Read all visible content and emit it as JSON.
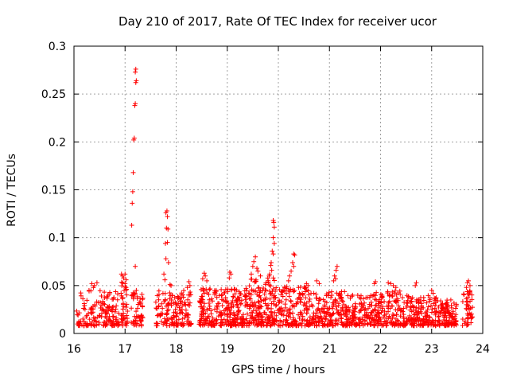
{
  "chart_data": {
    "type": "scatter",
    "title": "Day 210 of 2017, Rate Of TEC Index for receiver ucor",
    "xlabel": "GPS time / hours",
    "ylabel": "ROTI / TECUs",
    "xlim": [
      16,
      24
    ],
    "ylim": [
      0,
      0.3
    ],
    "x_ticks": [
      "16",
      "17",
      "18",
      "19",
      "20",
      "21",
      "22",
      "23",
      "24"
    ],
    "y_ticks": [
      "0",
      "0.05",
      "0.1",
      "0.15",
      "0.2",
      "0.25",
      "0.3"
    ],
    "grid": true,
    "marker": "+",
    "marker_color": "#ff0000",
    "series": [
      {
        "name": "ROTI",
        "points": [
          [
            17.13,
            0.113
          ],
          [
            17.14,
            0.136
          ],
          [
            17.15,
            0.148
          ],
          [
            17.16,
            0.168
          ],
          [
            17.17,
            0.202
          ],
          [
            17.18,
            0.204
          ],
          [
            17.19,
            0.238
          ],
          [
            17.2,
            0.24
          ],
          [
            17.21,
            0.262
          ],
          [
            17.22,
            0.264
          ],
          [
            17.2,
            0.273
          ],
          [
            17.21,
            0.276
          ],
          [
            17.2,
            0.07
          ],
          [
            17.22,
            0.045
          ],
          [
            17.16,
            0.038
          ],
          [
            17.8,
            0.126
          ],
          [
            17.82,
            0.128
          ],
          [
            17.83,
            0.122
          ],
          [
            17.81,
            0.11
          ],
          [
            17.84,
            0.109
          ],
          [
            17.79,
            0.094
          ],
          [
            17.83,
            0.095
          ],
          [
            17.8,
            0.078
          ],
          [
            17.85,
            0.074
          ],
          [
            17.88,
            0.051
          ],
          [
            17.9,
            0.05
          ],
          [
            17.76,
            0.062
          ],
          [
            17.78,
            0.056
          ],
          [
            19.9,
            0.118
          ],
          [
            19.91,
            0.116
          ],
          [
            19.92,
            0.111
          ],
          [
            19.9,
            0.1
          ],
          [
            19.92,
            0.094
          ],
          [
            19.88,
            0.086
          ],
          [
            19.9,
            0.083
          ],
          [
            19.86,
            0.074
          ],
          [
            19.85,
            0.071
          ],
          [
            19.87,
            0.066
          ],
          [
            19.82,
            0.06
          ],
          [
            19.83,
            0.062
          ],
          [
            20.3,
            0.083
          ],
          [
            20.32,
            0.082
          ],
          [
            20.28,
            0.074
          ],
          [
            20.3,
            0.07
          ],
          [
            20.25,
            0.065
          ],
          [
            20.22,
            0.06
          ],
          [
            20.2,
            0.055
          ],
          [
            21.15,
            0.07
          ],
          [
            21.13,
            0.066
          ],
          [
            21.1,
            0.06
          ],
          [
            21.12,
            0.057
          ],
          [
            21.08,
            0.055
          ],
          [
            19.55,
            0.08
          ],
          [
            19.52,
            0.075
          ],
          [
            19.5,
            0.07
          ],
          [
            19.58,
            0.068
          ],
          [
            19.47,
            0.062
          ],
          [
            19.65,
            0.06
          ],
          [
            19.6,
            0.065
          ],
          [
            16.93,
            0.062
          ],
          [
            16.95,
            0.06
          ],
          [
            17.0,
            0.062
          ],
          [
            16.97,
            0.058
          ],
          [
            17.02,
            0.056
          ],
          [
            17.0,
            0.052
          ],
          [
            18.55,
            0.063
          ],
          [
            18.57,
            0.06
          ],
          [
            18.52,
            0.057
          ],
          [
            18.6,
            0.055
          ],
          [
            19.05,
            0.064
          ],
          [
            19.07,
            0.062
          ],
          [
            19.04,
            0.058
          ],
          [
            20.75,
            0.055
          ],
          [
            20.8,
            0.052
          ],
          [
            21.9,
            0.054
          ],
          [
            21.88,
            0.052
          ],
          [
            22.15,
            0.053
          ],
          [
            22.2,
            0.052
          ],
          [
            22.25,
            0.05
          ],
          [
            22.3,
            0.048
          ],
          [
            22.7,
            0.053
          ],
          [
            22.68,
            0.05
          ],
          [
            23.0,
            0.045
          ],
          [
            23.03,
            0.042
          ],
          [
            23.7,
            0.053
          ],
          [
            23.72,
            0.055
          ],
          [
            23.75,
            0.05
          ],
          [
            23.68,
            0.048
          ],
          [
            16.35,
            0.052
          ],
          [
            16.4,
            0.05
          ],
          [
            16.45,
            0.053
          ],
          [
            16.38,
            0.048
          ],
          [
            18.25,
            0.054
          ],
          [
            18.27,
            0.05
          ],
          [
            18.22,
            0.048
          ],
          [
            20.55,
            0.052
          ],
          [
            20.58,
            0.05
          ],
          [
            20.52,
            0.047
          ]
        ]
      }
    ],
    "clusters": [
      {
        "x": [
          16.05,
          16.9
        ],
        "y": [
          0.008,
          0.045
        ],
        "count": 160
      },
      {
        "x": [
          16.92,
          17.05
        ],
        "y": [
          0.008,
          0.055
        ],
        "count": 40
      },
      {
        "x": [
          17.12,
          17.35
        ],
        "y": [
          0.008,
          0.045
        ],
        "count": 50
      },
      {
        "x": [
          17.6,
          18.0
        ],
        "y": [
          0.008,
          0.045
        ],
        "count": 80
      },
      {
        "x": [
          18.0,
          18.3
        ],
        "y": [
          0.008,
          0.045
        ],
        "count": 70
      },
      {
        "x": [
          18.45,
          19.0
        ],
        "y": [
          0.008,
          0.048
        ],
        "count": 150
      },
      {
        "x": [
          19.0,
          19.45
        ],
        "y": [
          0.008,
          0.05
        ],
        "count": 140
      },
      {
        "x": [
          19.45,
          20.0
        ],
        "y": [
          0.008,
          0.058
        ],
        "count": 170
      },
      {
        "x": [
          20.0,
          20.6
        ],
        "y": [
          0.008,
          0.05
        ],
        "count": 150
      },
      {
        "x": [
          20.6,
          21.3
        ],
        "y": [
          0.008,
          0.045
        ],
        "count": 170
      },
      {
        "x": [
          21.3,
          21.8
        ],
        "y": [
          0.008,
          0.04
        ],
        "count": 120
      },
      {
        "x": [
          21.8,
          22.5
        ],
        "y": [
          0.008,
          0.045
        ],
        "count": 180
      },
      {
        "x": [
          22.5,
          23.1
        ],
        "y": [
          0.008,
          0.04
        ],
        "count": 160
      },
      {
        "x": [
          23.1,
          23.5
        ],
        "y": [
          0.008,
          0.035
        ],
        "count": 110
      },
      {
        "x": [
          23.6,
          23.8
        ],
        "y": [
          0.008,
          0.045
        ],
        "count": 50
      }
    ]
  }
}
